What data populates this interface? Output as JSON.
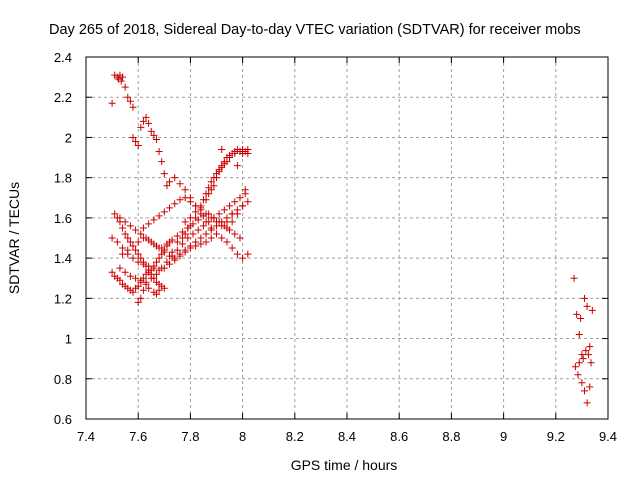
{
  "chart_data": {
    "type": "scatter",
    "title": "Day 265 of 2018, Sidereal Day-to-day VTEC variation (SDTVAR) for receiver mobs",
    "xlabel": "GPS time / hours",
    "ylabel": "SDTVAR / TECUs",
    "xlim": [
      7.4,
      9.4
    ],
    "ylim": [
      0.6,
      2.4
    ],
    "grid": true,
    "legend": "none",
    "x_ticks": [
      "7.4",
      "7.6",
      "7.8",
      "8",
      "8.2",
      "8.4",
      "8.6",
      "8.8",
      "9",
      "9.2",
      "9.4"
    ],
    "y_ticks": [
      "0.6",
      "0.8",
      "1",
      "1.2",
      "1.4",
      "1.6",
      "1.8",
      "2",
      "2.2",
      "2.4"
    ],
    "marker": "+",
    "marker_color": "#cc0000",
    "series": [
      {
        "name": "SDTVAR",
        "x": [
          7.51,
          7.52,
          7.525,
          7.53,
          7.535,
          7.54,
          7.55,
          7.56,
          7.57,
          7.58,
          7.5,
          7.58,
          7.59,
          7.6,
          7.61,
          7.62,
          7.63,
          7.64,
          7.65,
          7.66,
          7.67,
          7.68,
          7.69,
          7.7,
          7.71,
          7.6,
          7.61,
          7.62,
          7.63,
          7.64,
          7.66,
          7.67,
          7.68,
          7.73,
          7.75,
          7.77,
          7.78,
          7.79,
          7.8,
          7.82,
          7.84,
          7.86,
          7.87,
          7.88,
          7.89,
          7.9,
          7.91,
          7.92,
          7.93,
          7.94,
          7.95,
          7.97,
          7.99,
          8.0,
          8.01,
          8.02,
          7.78,
          7.8,
          7.82,
          7.84,
          7.85,
          7.86,
          7.87,
          7.88,
          7.89,
          7.9,
          7.91,
          7.92,
          7.93,
          7.94,
          7.95,
          7.96,
          7.97,
          7.98,
          7.99,
          8.0,
          8.02,
          7.5,
          7.51,
          7.52,
          7.53,
          7.54,
          7.55,
          7.56,
          7.57,
          7.58,
          7.59,
          7.6,
          7.61,
          7.62,
          7.63,
          7.64,
          7.65,
          7.66,
          7.67,
          7.68,
          7.69,
          7.7,
          7.71,
          7.72,
          7.52,
          7.53,
          7.54,
          7.55,
          7.56,
          7.57,
          7.58,
          7.59,
          7.6,
          7.61,
          7.62,
          7.63,
          7.64,
          7.65,
          7.66,
          7.67,
          7.68,
          7.69,
          7.7,
          7.62,
          7.64,
          7.66,
          7.68,
          7.7,
          7.72,
          7.74,
          7.76,
          7.78,
          7.8,
          7.82,
          7.84,
          7.86,
          7.88,
          7.9,
          7.92,
          7.94,
          7.96,
          7.98,
          8.0,
          8.02,
          7.5,
          7.52,
          7.54,
          7.56,
          7.58,
          7.6,
          7.62,
          7.64,
          7.66,
          7.68,
          7.7,
          7.72,
          7.74,
          7.76,
          7.78,
          7.8,
          7.82,
          7.84,
          7.86,
          7.88,
          7.9,
          7.72,
          7.74,
          7.76,
          7.78,
          7.8,
          7.82,
          7.84,
          7.86,
          7.88,
          7.9,
          7.92,
          7.94,
          7.96,
          7.98,
          8.0,
          8.02,
          7.53,
          7.55,
          7.57,
          7.59,
          7.61,
          7.63,
          7.65,
          7.67,
          7.69,
          7.71,
          7.73,
          7.75,
          7.77,
          7.79,
          7.81,
          7.83,
          7.85,
          7.87,
          7.89,
          7.91,
          7.93,
          7.95,
          7.97,
          7.99,
          8.01,
          7.51,
          7.53,
          7.55,
          7.57,
          7.59,
          7.61,
          7.63,
          7.65,
          7.67,
          7.69,
          7.71,
          7.73,
          7.75,
          7.77,
          7.79,
          7.81,
          7.83,
          7.85,
          7.87,
          7.89,
          7.91,
          7.93,
          7.95,
          7.97,
          7.99,
          7.54,
          7.56,
          7.58,
          7.6,
          7.62,
          7.64,
          7.66,
          7.68,
          7.7,
          7.72,
          7.74,
          7.76,
          7.78,
          7.8,
          7.82,
          7.84,
          7.86,
          7.88,
          7.9,
          7.92,
          7.94,
          7.96,
          7.98,
          8.0,
          7.92,
          7.95,
          7.98,
          8.01,
          7.94,
          7.96,
          9.27,
          9.28,
          9.29,
          9.3,
          9.31,
          9.32,
          9.33,
          9.34,
          9.29,
          9.3,
          9.31,
          9.32,
          9.33,
          9.275,
          9.285,
          9.295,
          9.305,
          9.315,
          9.325,
          9.335
        ],
        "y": [
          2.31,
          2.3,
          2.29,
          2.31,
          2.28,
          2.3,
          2.25,
          2.2,
          2.18,
          2.15,
          2.17,
          2.0,
          1.98,
          1.96,
          2.05,
          2.08,
          2.1,
          2.07,
          2.03,
          2.01,
          1.99,
          1.93,
          1.88,
          1.82,
          1.76,
          1.18,
          1.2,
          1.24,
          1.27,
          1.25,
          1.23,
          1.22,
          1.24,
          1.43,
          1.48,
          1.5,
          1.52,
          1.55,
          1.56,
          1.6,
          1.65,
          1.69,
          1.72,
          1.74,
          1.76,
          1.8,
          1.83,
          1.85,
          1.87,
          1.88,
          1.9,
          1.92,
          1.93,
          1.94,
          1.93,
          1.92,
          1.58,
          1.6,
          1.63,
          1.66,
          1.69,
          1.72,
          1.75,
          1.78,
          1.8,
          1.82,
          1.84,
          1.86,
          1.88,
          1.9,
          1.91,
          1.92,
          1.93,
          1.94,
          1.93,
          1.92,
          1.94,
          1.33,
          1.31,
          1.3,
          1.29,
          1.27,
          1.26,
          1.25,
          1.24,
          1.23,
          1.25,
          1.26,
          1.28,
          1.3,
          1.32,
          1.33,
          1.34,
          1.36,
          1.38,
          1.4,
          1.42,
          1.44,
          1.46,
          1.48,
          1.6,
          1.58,
          1.55,
          1.52,
          1.5,
          1.48,
          1.46,
          1.44,
          1.42,
          1.4,
          1.38,
          1.36,
          1.34,
          1.32,
          1.3,
          1.28,
          1.27,
          1.26,
          1.25,
          1.55,
          1.57,
          1.59,
          1.61,
          1.63,
          1.65,
          1.67,
          1.69,
          1.7,
          1.68,
          1.66,
          1.64,
          1.62,
          1.6,
          1.58,
          1.56,
          1.55,
          1.58,
          1.62,
          1.66,
          1.68,
          1.5,
          1.48,
          1.45,
          1.42,
          1.4,
          1.38,
          1.37,
          1.36,
          1.35,
          1.34,
          1.35,
          1.37,
          1.39,
          1.41,
          1.43,
          1.45,
          1.46,
          1.47,
          1.48,
          1.5,
          1.52,
          1.78,
          1.8,
          1.77,
          1.74,
          1.7,
          1.66,
          1.62,
          1.58,
          1.55,
          1.52,
          1.5,
          1.48,
          1.45,
          1.42,
          1.4,
          1.42,
          1.35,
          1.33,
          1.31,
          1.3,
          1.29,
          1.28,
          1.3,
          1.32,
          1.35,
          1.38,
          1.41,
          1.44,
          1.47,
          1.5,
          1.52,
          1.54,
          1.56,
          1.58,
          1.6,
          1.62,
          1.64,
          1.66,
          1.68,
          1.7,
          1.72,
          1.62,
          1.6,
          1.58,
          1.56,
          1.54,
          1.52,
          1.5,
          1.48,
          1.46,
          1.45,
          1.47,
          1.49,
          1.51,
          1.53,
          1.55,
          1.57,
          1.59,
          1.61,
          1.62,
          1.6,
          1.58,
          1.56,
          1.54,
          1.52,
          1.5,
          1.42,
          1.44,
          1.46,
          1.48,
          1.5,
          1.49,
          1.47,
          1.45,
          1.43,
          1.41,
          1.4,
          1.42,
          1.44,
          1.46,
          1.48,
          1.5,
          1.52,
          1.54,
          1.56,
          1.58,
          1.6,
          1.62,
          1.64,
          1.66,
          1.94,
          1.9,
          1.86,
          1.74,
          1.58,
          1.62,
          1.3,
          1.12,
          0.88,
          0.92,
          1.2,
          1.16,
          0.96,
          1.14,
          1.02,
          0.78,
          0.74,
          0.68,
          0.76,
          0.86,
          0.82,
          1.1,
          0.9,
          0.94,
          0.92,
          0.88
        ]
      }
    ]
  }
}
